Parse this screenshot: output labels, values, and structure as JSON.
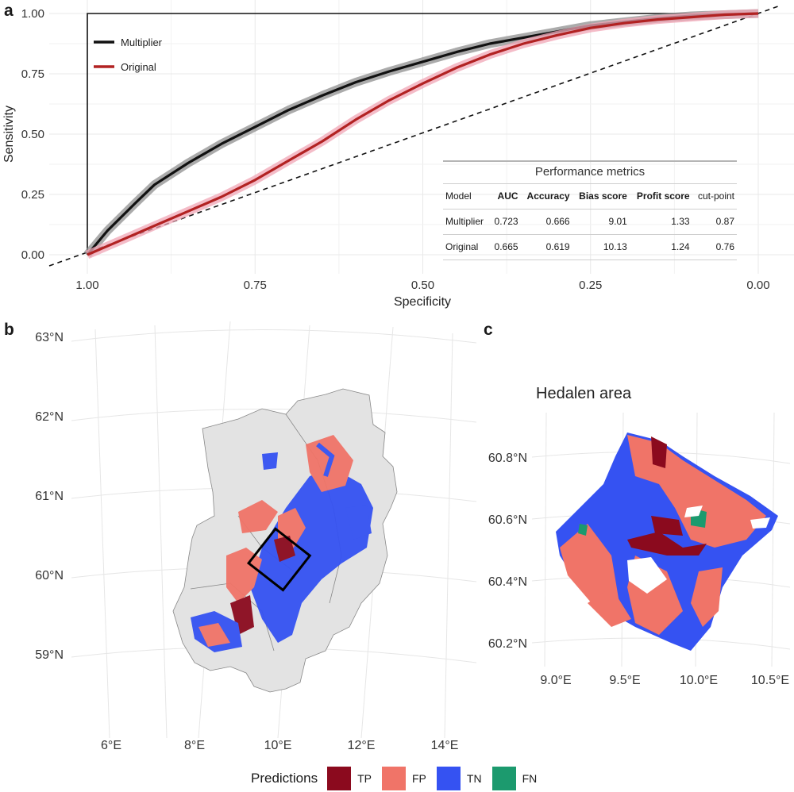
{
  "panels": {
    "a": "a",
    "b": "b",
    "c": "c"
  },
  "colors": {
    "multiplier": "#111111",
    "original": "#b22222",
    "multiplier_band": "#8f8f8f",
    "original_band": "#f0a6b5",
    "TP": "#8b0a1e",
    "FP": "#f07468",
    "TN": "#3552f2",
    "FN": "#1c9a6e",
    "land": "#e3e3e3"
  },
  "chart_data": [
    {
      "type": "line",
      "panel": "a",
      "xlabel": "Specificity",
      "ylabel": "Sensitivity",
      "x_reversed": true,
      "xlim": [
        1.0,
        0.0
      ],
      "ylim": [
        0.0,
        1.0
      ],
      "x_ticks": [
        "1.00",
        "0.75",
        "0.50",
        "0.25",
        "0.00"
      ],
      "y_ticks": [
        "0.00",
        "0.25",
        "0.50",
        "0.75",
        "1.00"
      ],
      "legend": [
        {
          "name": "Multiplier",
          "color": "#111111"
        },
        {
          "name": "Original",
          "color": "#b22222"
        }
      ],
      "series": [
        {
          "name": "Multiplier",
          "specificity": [
            1.0,
            0.97,
            0.93,
            0.9,
            0.85,
            0.8,
            0.75,
            0.7,
            0.65,
            0.6,
            0.55,
            0.5,
            0.45,
            0.4,
            0.35,
            0.3,
            0.25,
            0.2,
            0.15,
            0.1,
            0.05,
            0.0
          ],
          "sensitivity": [
            0.0,
            0.1,
            0.21,
            0.29,
            0.38,
            0.46,
            0.53,
            0.6,
            0.66,
            0.715,
            0.76,
            0.8,
            0.84,
            0.875,
            0.9,
            0.925,
            0.95,
            0.965,
            0.98,
            0.99,
            0.995,
            1.0
          ]
        },
        {
          "name": "Original",
          "specificity": [
            1.0,
            0.95,
            0.9,
            0.85,
            0.8,
            0.75,
            0.7,
            0.65,
            0.6,
            0.55,
            0.5,
            0.45,
            0.4,
            0.35,
            0.3,
            0.25,
            0.2,
            0.15,
            0.1,
            0.05,
            0.0
          ],
          "sensitivity": [
            0.0,
            0.06,
            0.12,
            0.18,
            0.24,
            0.31,
            0.39,
            0.47,
            0.56,
            0.64,
            0.71,
            0.775,
            0.83,
            0.875,
            0.91,
            0.94,
            0.96,
            0.975,
            0.985,
            0.995,
            1.0
          ]
        }
      ],
      "reference_line": "diagonal dashed",
      "table": {
        "title": "Performance metrics",
        "columns": [
          "Model",
          "AUC",
          "Accuracy",
          "Bias score",
          "Profit score",
          "cut-point"
        ],
        "rows": [
          {
            "model": "Multiplier",
            "auc": "0.723",
            "accuracy": "0.666",
            "bias": "9.01",
            "profit": "1.33",
            "cut": "0.87"
          },
          {
            "model": "Original",
            "auc": "0.665",
            "accuracy": "0.619",
            "bias": "10.13",
            "profit": "1.24",
            "cut": "0.76"
          }
        ]
      }
    },
    {
      "type": "map",
      "panel": "b",
      "lat_ticks": [
        "63°N",
        "62°N",
        "61°N",
        "60°N",
        "59°N"
      ],
      "lon_ticks": [
        "6°E",
        "8°E",
        "10°E",
        "12°E",
        "14°E"
      ],
      "highlight_box": "Hedalen area"
    },
    {
      "type": "map",
      "panel": "c",
      "title": "Hedalen area",
      "lat_ticks": [
        "60.8°N",
        "60.6°N",
        "60.4°N",
        "60.2°N"
      ],
      "lon_ticks": [
        "9.0°E",
        "9.5°E",
        "10.0°E",
        "10.5°E"
      ]
    }
  ],
  "legend": {
    "title": "Predictions",
    "items": [
      {
        "key": "TP",
        "label": "TP",
        "color": "#8b0a1e"
      },
      {
        "key": "FP",
        "label": "FP",
        "color": "#f07468"
      },
      {
        "key": "TN",
        "label": "TN",
        "color": "#3552f2"
      },
      {
        "key": "FN",
        "label": "FN",
        "color": "#1c9a6e"
      }
    ]
  }
}
